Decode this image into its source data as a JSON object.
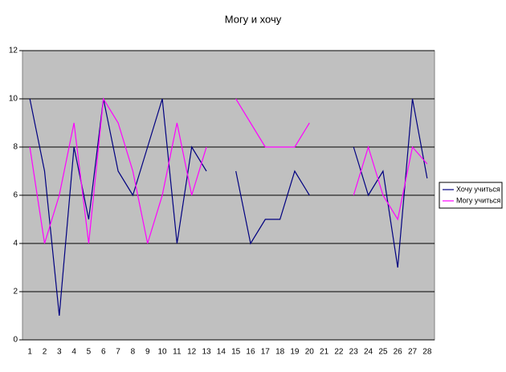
{
  "chart_data": {
    "type": "line",
    "title": "Могу и хочу",
    "categories": [
      1,
      2,
      3,
      4,
      5,
      6,
      7,
      8,
      9,
      10,
      11,
      12,
      13,
      14,
      15,
      16,
      17,
      18,
      19,
      20,
      21,
      22,
      23,
      24,
      25,
      26,
      27,
      28
    ],
    "series": [
      {
        "name": "Хочу учиться",
        "color": "#000080",
        "values": [
          10,
          7,
          1,
          8,
          5,
          10,
          7,
          6,
          8,
          10,
          4,
          8,
          7,
          null,
          7,
          4,
          5,
          5,
          7,
          6,
          null,
          null,
          8,
          6,
          7,
          3,
          10,
          6.7
        ]
      },
      {
        "name": "Могу учиться",
        "color": "#ff00ff",
        "values": [
          8,
          4,
          6,
          9,
          4,
          10,
          9,
          7,
          4,
          6,
          9,
          6,
          8,
          null,
          10,
          9,
          8,
          8,
          8,
          9,
          null,
          null,
          6,
          8,
          6,
          5,
          8,
          7.3
        ]
      }
    ],
    "ylim": [
      0,
      12
    ],
    "yticks": [
      0,
      2,
      4,
      6,
      8,
      10,
      12
    ],
    "grid": true,
    "legend": "right"
  }
}
